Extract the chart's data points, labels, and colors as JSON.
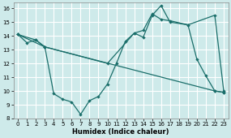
{
  "xlabel": "Humidex (Indice chaleur)",
  "xlim": [
    -0.5,
    23.5
  ],
  "ylim": [
    8,
    16.4
  ],
  "xticks": [
    0,
    1,
    2,
    3,
    4,
    5,
    6,
    7,
    8,
    9,
    10,
    11,
    12,
    13,
    14,
    15,
    16,
    17,
    18,
    19,
    20,
    21,
    22,
    23
  ],
  "yticks": [
    8,
    9,
    10,
    11,
    12,
    13,
    14,
    15,
    16
  ],
  "bg_color": "#ceeaea",
  "line_color": "#1a6e6a",
  "grid_color": "#b0d8d8",
  "line1_x": [
    0,
    1,
    2,
    3,
    4,
    5,
    6,
    7,
    8,
    9,
    10,
    11,
    12,
    13,
    14,
    15,
    16,
    17,
    19,
    20,
    21,
    22,
    23
  ],
  "line1_y": [
    14.1,
    13.5,
    13.7,
    13.2,
    9.8,
    9.4,
    9.2,
    8.3,
    9.3,
    9.6,
    10.5,
    12.0,
    13.6,
    14.2,
    13.9,
    15.5,
    16.2,
    15.0,
    14.8,
    12.3,
    11.1,
    10.0,
    9.9
  ],
  "line2_x": [
    0,
    2,
    3,
    10,
    13,
    14,
    15,
    16,
    17,
    19,
    22,
    23
  ],
  "line2_y": [
    14.1,
    13.7,
    13.2,
    12.0,
    14.2,
    14.4,
    15.6,
    15.2,
    15.1,
    14.8,
    15.5,
    10.0
  ],
  "line3_x": [
    0,
    3,
    22,
    23
  ],
  "line3_y": [
    14.1,
    13.2,
    10.0,
    9.9
  ]
}
